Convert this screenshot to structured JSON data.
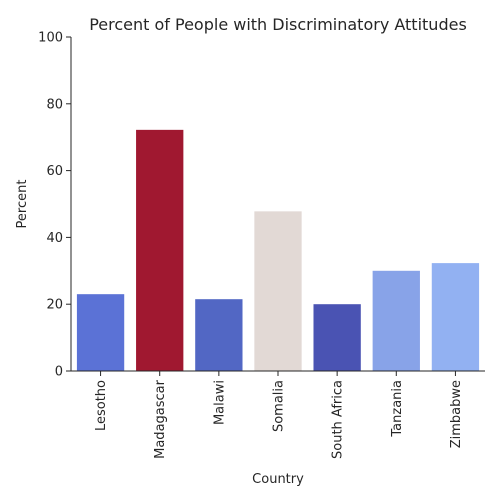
{
  "chart_data": {
    "type": "bar",
    "title": "Percent of People with Discriminatory Attitudes",
    "xlabel": "Country",
    "ylabel": "Percent",
    "ylim": [
      0,
      100
    ],
    "yticks": [
      0,
      20,
      40,
      60,
      80,
      100
    ],
    "grid": false,
    "categories": [
      "Lesotho",
      "Madagascar",
      "Malawi",
      "Somalia",
      "South Africa",
      "Tanzania",
      "Zimbabwe"
    ],
    "values": [
      23.0,
      72.2,
      21.5,
      47.8,
      20.0,
      30.0,
      32.3
    ],
    "colors": [
      "#5b72d6",
      "#a01830",
      "#5267c4",
      "#e2d9d5",
      "#4a53b3",
      "#88a3e8",
      "#92b1f2"
    ]
  }
}
